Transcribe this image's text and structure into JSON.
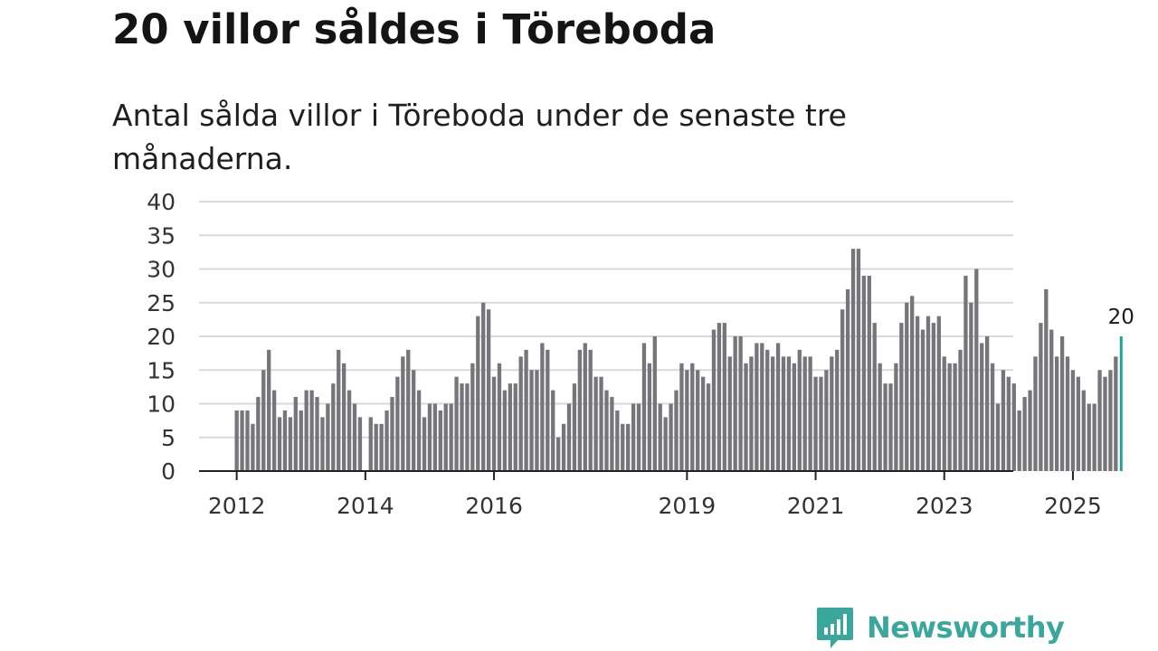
{
  "title": "20 villor såldes i Töreboda",
  "subtitle": "Antal sålda villor i Töreboda under de senaste tre månaderna.",
  "brand": {
    "name": "Newsworthy",
    "color": "#3aa79d"
  },
  "colors": {
    "bar": "#75757a",
    "highlight": "#1fa396",
    "grid": "#d9d9d9",
    "axis": "#222222"
  },
  "chart_data": {
    "type": "bar",
    "title": "20 villor såldes i Töreboda",
    "subtitle": "Antal sålda villor i Töreboda under de senaste tre månaderna.",
    "xlabel": "",
    "ylabel": "",
    "ylim": [
      0,
      40
    ],
    "yticks": [
      0,
      5,
      10,
      15,
      20,
      25,
      30,
      35,
      40
    ],
    "x_tick_labels": [
      "2012",
      "2014",
      "2016",
      "2019",
      "2021",
      "2023",
      "2025"
    ],
    "x_tick_months": [
      "2012-01",
      "2014-01",
      "2016-01",
      "2019-01",
      "2021-01",
      "2023-01",
      "2025-01"
    ],
    "start_month": "2012-01",
    "end_month": "2025-08",
    "grid": true,
    "legend": "none",
    "highlight_last": true,
    "last_value_label": "20",
    "values": [
      9,
      9,
      9,
      7,
      11,
      15,
      18,
      12,
      8,
      9,
      8,
      11,
      9,
      12,
      12,
      11,
      8,
      10,
      13,
      18,
      16,
      12,
      10,
      8,
      0,
      8,
      7,
      7,
      9,
      11,
      14,
      17,
      18,
      15,
      12,
      8,
      10,
      10,
      9,
      10,
      10,
      14,
      13,
      13,
      16,
      23,
      25,
      24,
      14,
      16,
      12,
      13,
      13,
      17,
      18,
      15,
      15,
      19,
      18,
      12,
      5,
      7,
      10,
      13,
      18,
      19,
      18,
      14,
      14,
      12,
      11,
      9,
      7,
      7,
      10,
      10,
      19,
      16,
      20,
      10,
      8,
      10,
      12,
      16,
      15,
      16,
      15,
      14,
      13,
      21,
      22,
      22,
      17,
      20,
      20,
      16,
      17,
      19,
      19,
      18,
      17,
      19,
      17,
      17,
      16,
      18,
      17,
      17,
      14,
      14,
      15,
      17,
      18,
      24,
      27,
      33,
      33,
      29,
      29,
      22,
      16,
      13,
      13,
      16,
      22,
      25,
      26,
      23,
      21,
      23,
      22,
      23,
      17,
      16,
      16,
      18,
      29,
      25,
      30,
      19,
      20,
      16,
      10,
      15,
      14,
      13,
      9,
      11,
      12,
      17,
      22,
      27,
      21,
      17,
      20,
      17,
      15,
      14,
      12,
      10,
      10,
      15,
      14,
      15,
      17,
      20
    ]
  }
}
